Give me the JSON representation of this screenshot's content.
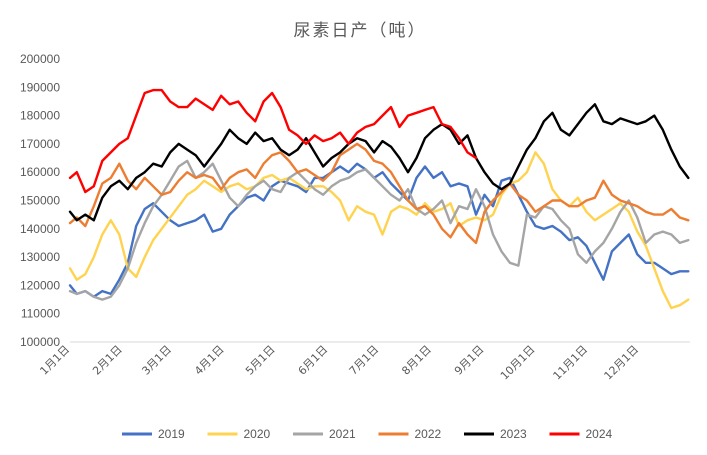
{
  "chart_data": {
    "type": "line",
    "title": "尿素日产（吨）",
    "xlabel": "",
    "ylabel": "",
    "ylim": [
      100000,
      200000
    ],
    "yticks": [
      100000,
      110000,
      120000,
      130000,
      140000,
      150000,
      160000,
      170000,
      180000,
      190000,
      200000
    ],
    "ytick_labels": [
      "100000",
      "110000",
      "120000",
      "130000",
      "140000",
      "150000",
      "160000",
      "170000",
      "180000",
      "190000",
      "200000"
    ],
    "x_domain": [
      1,
      366
    ],
    "xticks": [
      1,
      32,
      61,
      92,
      122,
      153,
      183,
      214,
      245,
      275,
      306,
      336
    ],
    "xtick_labels": [
      "1月1日",
      "2月1日",
      "3月1日",
      "4月1日",
      "5月1日",
      "6月1日",
      "7月1日",
      "8月1日",
      "9月1日",
      "10月1日",
      "11月1日",
      "12月1日"
    ],
    "grid": false,
    "legend_position": "bottom",
    "series": [
      {
        "name": "2019",
        "color": "#4472C4",
        "x": [
          1,
          5,
          10,
          15,
          20,
          25,
          30,
          35,
          40,
          45,
          50,
          55,
          60,
          65,
          70,
          75,
          80,
          85,
          90,
          95,
          100,
          105,
          110,
          115,
          120,
          125,
          130,
          135,
          140,
          145,
          150,
          155,
          160,
          165,
          170,
          175,
          180,
          185,
          190,
          195,
          200,
          205,
          210,
          215,
          220,
          225,
          230,
          235,
          240,
          245,
          250,
          255,
          260,
          265,
          270,
          275,
          280,
          285,
          290,
          295,
          300,
          305,
          310,
          315,
          320,
          325,
          330,
          335,
          340,
          345,
          350,
          355,
          360,
          365
        ],
        "values": [
          120000,
          117000,
          118000,
          116000,
          118000,
          117000,
          122000,
          128000,
          141000,
          147000,
          149000,
          146000,
          143000,
          141000,
          142000,
          143000,
          145000,
          139000,
          140000,
          145000,
          148000,
          151000,
          152000,
          150000,
          155000,
          157000,
          156000,
          155000,
          153000,
          158000,
          158000,
          160000,
          162000,
          160000,
          163000,
          161000,
          158000,
          160000,
          156000,
          153000,
          150000,
          158000,
          162000,
          158000,
          160000,
          155000,
          156000,
          155000,
          145000,
          152000,
          148000,
          157000,
          158000,
          152000,
          146000,
          141000,
          140000,
          141000,
          139000,
          136000,
          137000,
          134000,
          128000,
          122000,
          132000,
          135000,
          138000,
          131000,
          128000,
          128000,
          126000,
          124000,
          125000,
          125000
        ]
      },
      {
        "name": "2020",
        "color": "#FFD34F",
        "x": [
          1,
          5,
          10,
          15,
          20,
          25,
          30,
          35,
          40,
          45,
          50,
          55,
          60,
          65,
          70,
          75,
          80,
          85,
          90,
          95,
          100,
          105,
          110,
          115,
          120,
          125,
          130,
          135,
          140,
          145,
          150,
          155,
          160,
          165,
          170,
          175,
          180,
          185,
          190,
          195,
          200,
          205,
          210,
          215,
          220,
          225,
          230,
          235,
          240,
          245,
          250,
          255,
          260,
          265,
          270,
          275,
          280,
          285,
          290,
          295,
          300,
          305,
          310,
          315,
          320,
          325,
          330,
          335,
          340,
          345,
          350,
          355,
          360,
          365
        ],
        "values": [
          126000,
          122000,
          124000,
          130000,
          138000,
          143000,
          138000,
          126000,
          123000,
          130000,
          136000,
          140000,
          144000,
          148000,
          152000,
          154000,
          157000,
          155000,
          153000,
          155000,
          156000,
          154000,
          155000,
          158000,
          159000,
          157000,
          158000,
          156000,
          154000,
          155000,
          155000,
          153000,
          150000,
          143000,
          148000,
          146000,
          145000,
          138000,
          146000,
          148000,
          147000,
          145000,
          149000,
          146000,
          147000,
          149000,
          141000,
          143000,
          144000,
          143000,
          145000,
          152000,
          156000,
          157000,
          160000,
          167000,
          163000,
          154000,
          150000,
          148000,
          151000,
          146000,
          143000,
          145000,
          147000,
          149000,
          146000,
          139000,
          134000,
          126000,
          118000,
          112000,
          113000,
          115000
        ]
      },
      {
        "name": "2021",
        "color": "#A5A5A5",
        "x": [
          1,
          5,
          10,
          15,
          20,
          25,
          30,
          35,
          40,
          45,
          50,
          55,
          60,
          65,
          70,
          75,
          80,
          85,
          90,
          95,
          100,
          105,
          110,
          115,
          120,
          125,
          130,
          135,
          140,
          145,
          150,
          155,
          160,
          165,
          170,
          175,
          180,
          185,
          190,
          195,
          200,
          205,
          210,
          215,
          220,
          225,
          230,
          235,
          240,
          245,
          250,
          255,
          260,
          265,
          270,
          275,
          280,
          285,
          290,
          295,
          300,
          305,
          310,
          315,
          320,
          325,
          330,
          335,
          340,
          345,
          350,
          355,
          360,
          365
        ],
        "values": [
          118000,
          117000,
          118000,
          116000,
          115000,
          116000,
          120000,
          126000,
          135000,
          142000,
          148000,
          152000,
          157000,
          162000,
          164000,
          158000,
          160000,
          163000,
          157000,
          151000,
          148000,
          152000,
          155000,
          157000,
          154000,
          153000,
          158000,
          160000,
          157000,
          154000,
          152000,
          155000,
          157000,
          158000,
          160000,
          161000,
          158000,
          155000,
          152000,
          150000,
          154000,
          147000,
          145000,
          147000,
          150000,
          142000,
          148000,
          147000,
          154000,
          148000,
          138000,
          132000,
          128000,
          127000,
          145000,
          144000,
          148000,
          147000,
          143000,
          140000,
          131000,
          128000,
          132000,
          135000,
          140000,
          146000,
          150000,
          144000,
          135000,
          138000,
          139000,
          138000,
          135000,
          136000
        ]
      },
      {
        "name": "2022",
        "color": "#ED7D31",
        "x": [
          1,
          5,
          10,
          15,
          20,
          25,
          30,
          35,
          40,
          45,
          50,
          55,
          60,
          65,
          70,
          75,
          80,
          85,
          90,
          95,
          100,
          105,
          110,
          115,
          120,
          125,
          130,
          135,
          140,
          145,
          150,
          155,
          160,
          165,
          170,
          175,
          180,
          185,
          190,
          195,
          200,
          205,
          210,
          215,
          220,
          225,
          230,
          235,
          240,
          245,
          250,
          255,
          260,
          265,
          270,
          275,
          280,
          285,
          290,
          295,
          300,
          305,
          310,
          315,
          320,
          325,
          330,
          335,
          340,
          345,
          350,
          355,
          360,
          365
        ],
        "values": [
          142000,
          144000,
          141000,
          148000,
          156000,
          158000,
          163000,
          157000,
          154000,
          158000,
          155000,
          152000,
          153000,
          157000,
          160000,
          158000,
          159000,
          158000,
          154000,
          158000,
          160000,
          161000,
          158000,
          163000,
          166000,
          167000,
          164000,
          160000,
          161000,
          159000,
          157000,
          160000,
          166000,
          168000,
          170000,
          168000,
          164000,
          163000,
          160000,
          155000,
          150000,
          147000,
          148000,
          145000,
          140000,
          137000,
          142000,
          138000,
          135000,
          146000,
          150000,
          153000,
          156000,
          152000,
          150000,
          146000,
          148000,
          150000,
          150000,
          148000,
          148000,
          150000,
          151000,
          157000,
          152000,
          150000,
          149000,
          148000,
          146000,
          145000,
          145000,
          147000,
          144000,
          143000
        ]
      },
      {
        "name": "2023",
        "color": "#000000",
        "x": [
          1,
          5,
          10,
          15,
          20,
          25,
          30,
          35,
          40,
          45,
          50,
          55,
          60,
          65,
          70,
          75,
          80,
          85,
          90,
          95,
          100,
          105,
          110,
          115,
          120,
          125,
          130,
          135,
          140,
          145,
          150,
          155,
          160,
          165,
          170,
          175,
          180,
          185,
          190,
          195,
          200,
          205,
          210,
          215,
          220,
          225,
          230,
          235,
          240,
          245,
          250,
          255,
          260,
          265,
          270,
          275,
          280,
          285,
          290,
          295,
          300,
          305,
          310,
          315,
          320,
          325,
          330,
          335,
          340,
          345,
          350,
          355,
          360,
          365
        ],
        "values": [
          146000,
          143000,
          145000,
          143000,
          151000,
          155000,
          157000,
          154000,
          158000,
          160000,
          163000,
          162000,
          167000,
          170000,
          168000,
          166000,
          162000,
          166000,
          170000,
          175000,
          172000,
          170000,
          174000,
          171000,
          172000,
          168000,
          166000,
          168000,
          172000,
          167000,
          162000,
          165000,
          167000,
          170000,
          172000,
          171000,
          167000,
          171000,
          169000,
          165000,
          160000,
          165000,
          172000,
          175000,
          177000,
          175000,
          170000,
          173000,
          165000,
          160000,
          156000,
          154000,
          156000,
          162000,
          168000,
          172000,
          178000,
          181000,
          175000,
          173000,
          177000,
          181000,
          184000,
          178000,
          177000,
          179000,
          178000,
          177000,
          178000,
          180000,
          175000,
          168000,
          162000,
          158000
        ]
      },
      {
        "name": "2024",
        "color": "#FF0000",
        "x": [
          1,
          5,
          10,
          15,
          20,
          25,
          30,
          35,
          40,
          45,
          50,
          55,
          60,
          65,
          70,
          75,
          80,
          85,
          90,
          95,
          100,
          105,
          110,
          115,
          120,
          125,
          130,
          135,
          140,
          145,
          150,
          155,
          160,
          165,
          170,
          175,
          180,
          185,
          190,
          195,
          200,
          205,
          210,
          215,
          220,
          225,
          230,
          235,
          240
        ],
        "values": [
          158000,
          160000,
          153000,
          155000,
          164000,
          167000,
          170000,
          172000,
          180000,
          188000,
          189000,
          189000,
          185000,
          183000,
          183000,
          186000,
          184000,
          182000,
          187000,
          184000,
          185000,
          181000,
          178000,
          185000,
          188000,
          183000,
          175000,
          173000,
          170000,
          173000,
          171000,
          172000,
          174000,
          170000,
          174000,
          176000,
          177000,
          180000,
          183000,
          176000,
          180000,
          181000,
          182000,
          183000,
          177000,
          176000,
          172000,
          167000,
          165000
        ]
      }
    ]
  }
}
